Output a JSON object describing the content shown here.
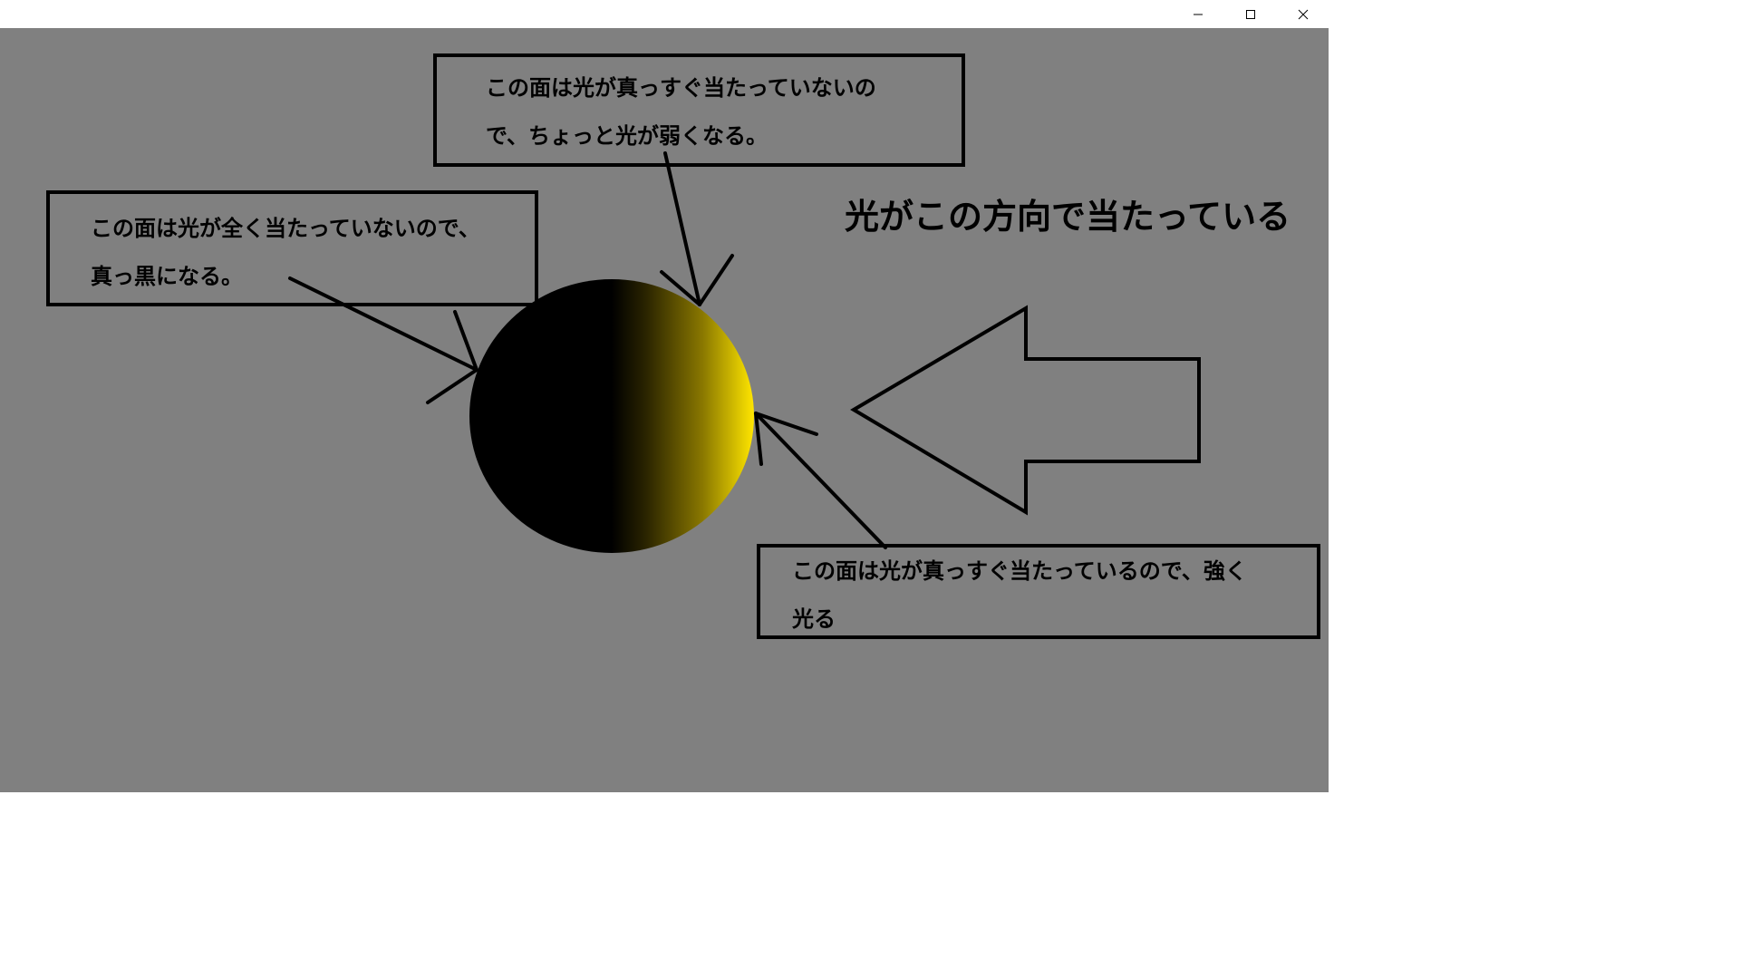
{
  "window": {
    "controls": {
      "minimize_icon": "minimize-icon",
      "maximize_icon": "maximize-icon",
      "close_icon": "close-icon"
    }
  },
  "scene": {
    "background_color": "#808080",
    "sphere": {
      "lit_color": "#ffe600",
      "dark_color": "#000000"
    },
    "light_direction_label": "光がこの方向で当たっている",
    "arrow_icon": "left-arrow-icon"
  },
  "callouts": {
    "top": {
      "line1": "この面は光が真っすぐ当たっていないの",
      "line2": "で、ちょっと光が弱くなる。"
    },
    "left": {
      "line1": "この面は光が全く当たっていないので、",
      "line2": "真っ黒になる。"
    },
    "right": {
      "line1": "この面は光が真っすぐ当たっているので、強く",
      "line2": "光る"
    }
  }
}
